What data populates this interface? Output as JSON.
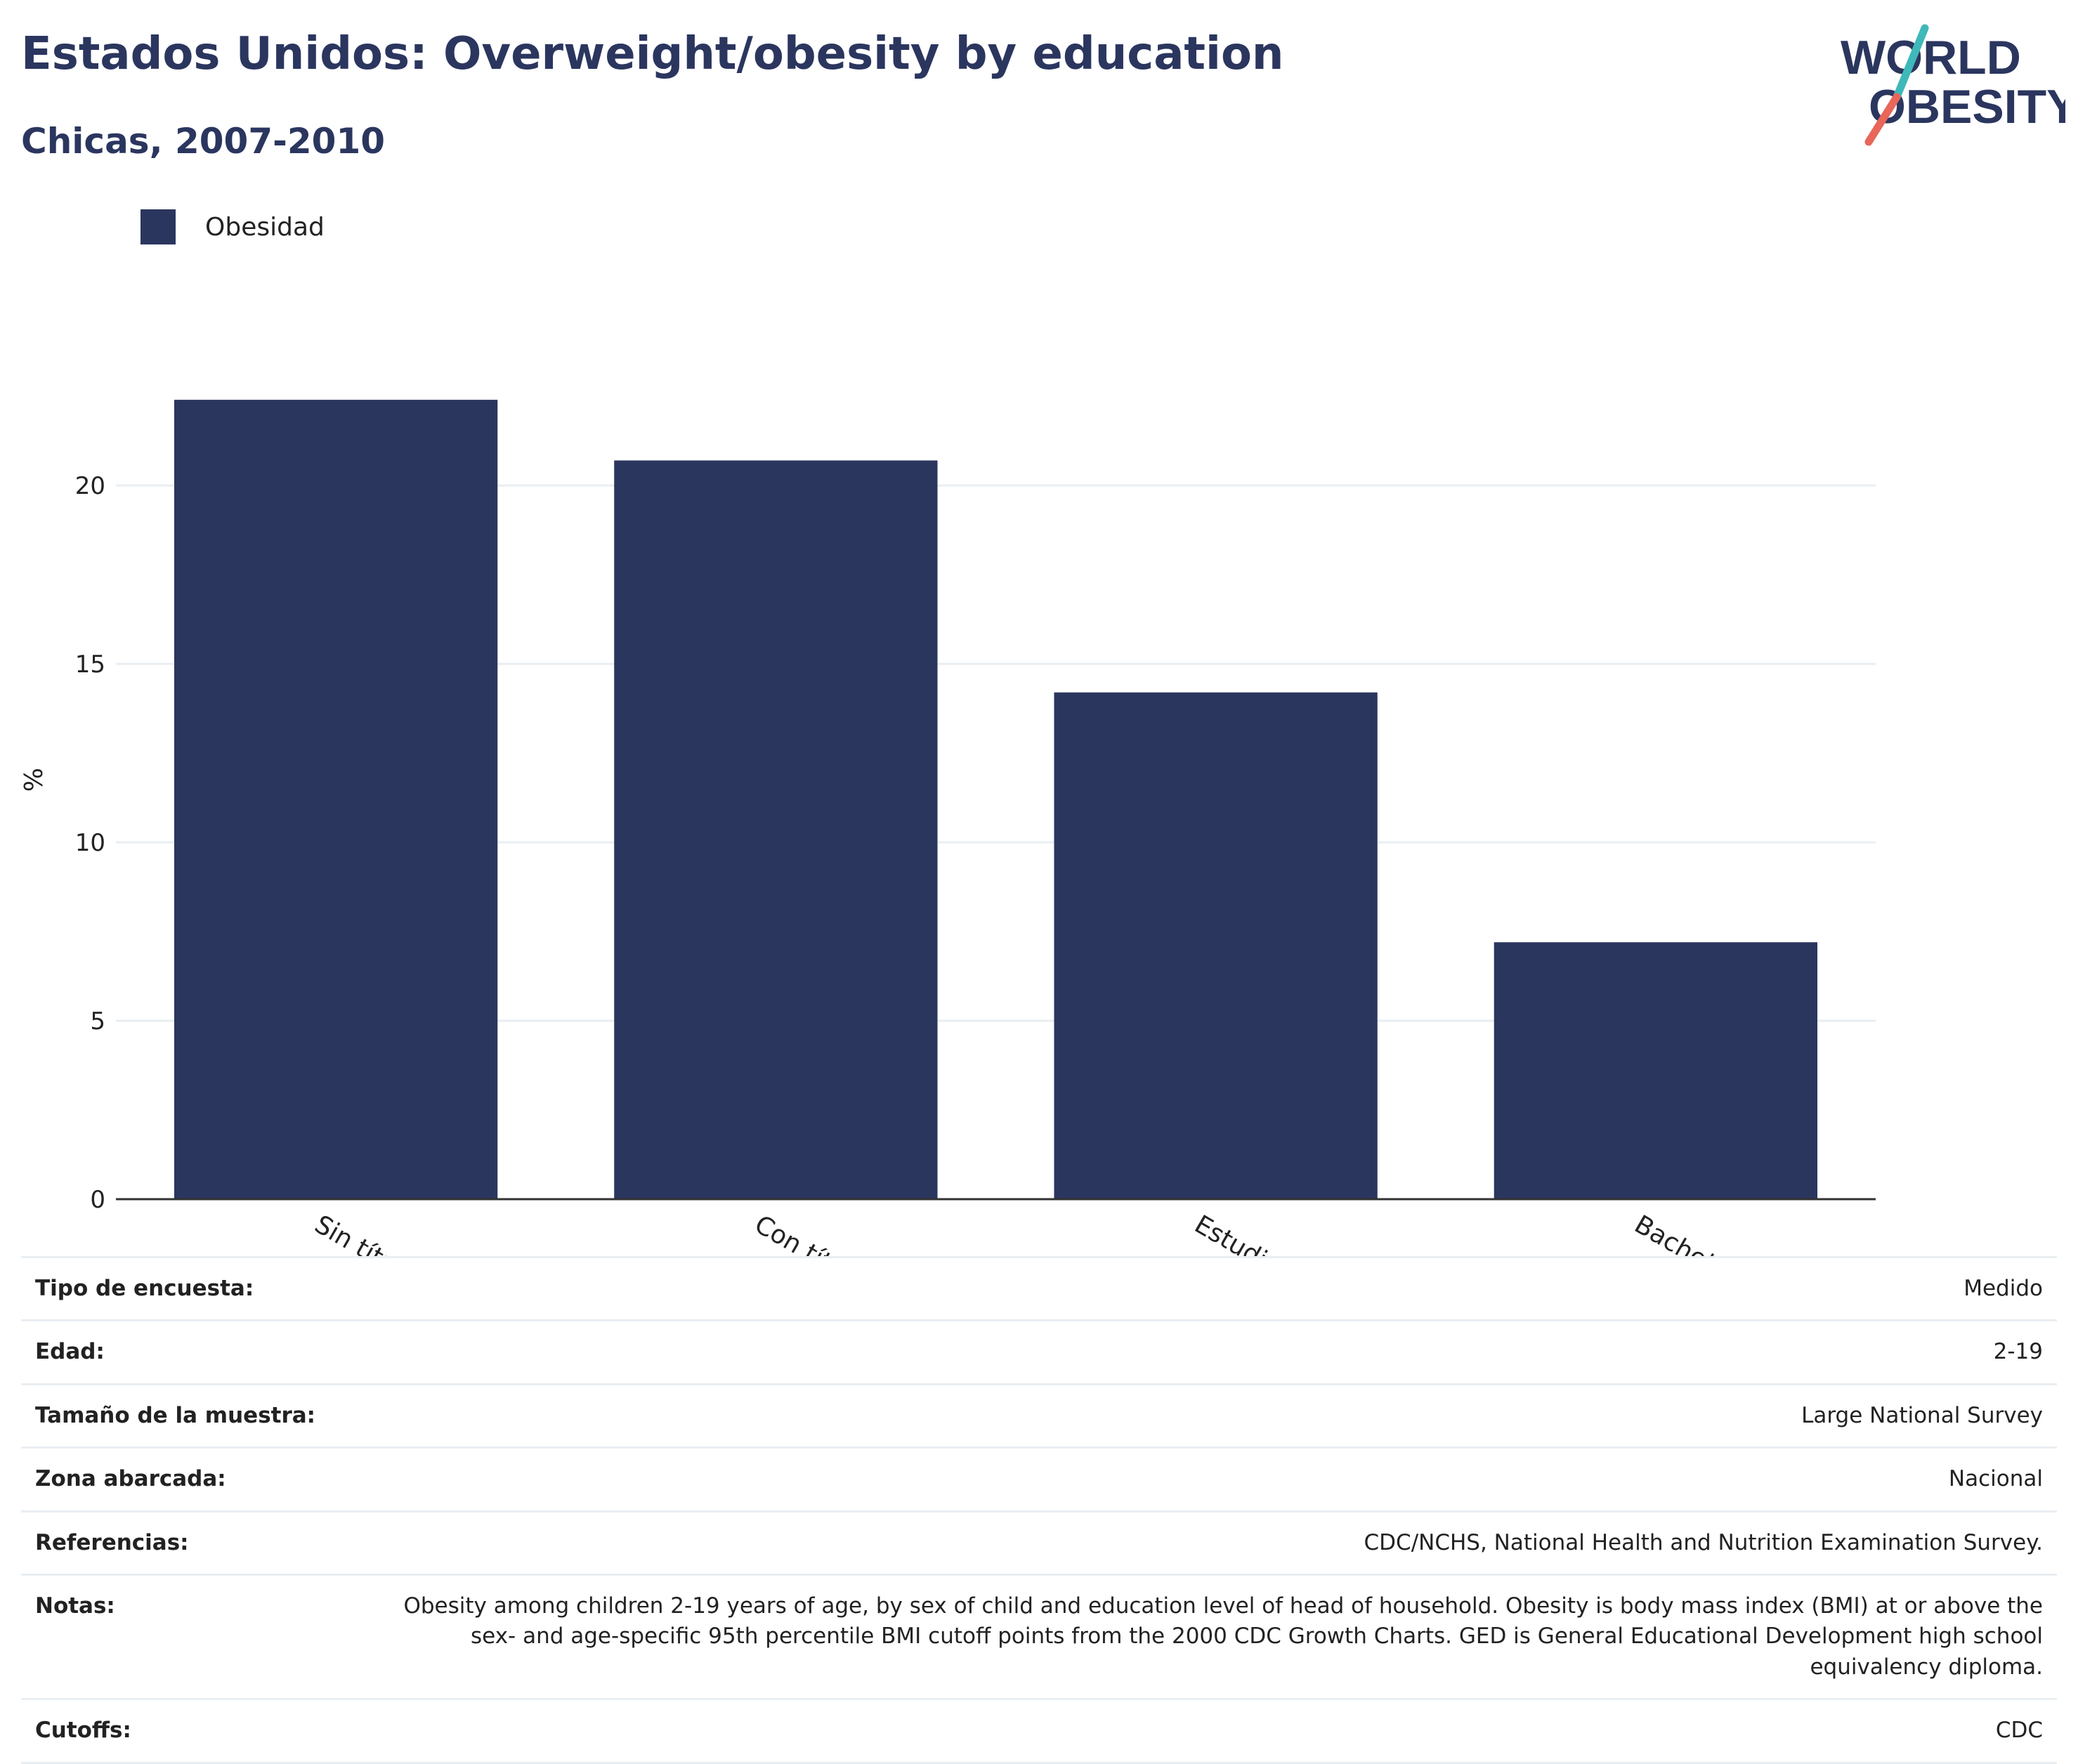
{
  "header": {
    "title": "Estados Unidos: Overweight/obesity by education",
    "subtitle": "Chicas, 2007-2010",
    "logo_line1": "WORLD",
    "logo_line2": "OBESITY"
  },
  "colors": {
    "bar": "#2b365f",
    "logo_text": "#2b365f",
    "logo_teal": "#3fb8b9",
    "logo_coral": "#e8665a",
    "grid": "#e9eef2",
    "axis": "#333333"
  },
  "chart_data": {
    "type": "bar",
    "categories": [
      "Sin título de secundaria",
      "Con título de bachillerato o con el Examen de Desarrollo Educativo General (GED en inglés)",
      "Estudios de grado parciales",
      "Bachelor’s degree or higher"
    ],
    "series": [
      {
        "name": "Obesidad",
        "values": [
          22.4,
          20.7,
          14.2,
          7.2
        ]
      }
    ],
    "ylabel": "%",
    "xlabel": "",
    "ylim": [
      0,
      25
    ],
    "yticks": [
      0,
      5,
      10,
      15,
      20
    ],
    "grid": true,
    "legend_position": "top-left"
  },
  "meta": [
    {
      "label": "Tipo de encuesta:",
      "value": "Medido"
    },
    {
      "label": "Edad:",
      "value": "2-19"
    },
    {
      "label": "Tamaño de la muestra:",
      "value": "Large National Survey"
    },
    {
      "label": "Zona abarcada:",
      "value": "Nacional"
    },
    {
      "label": "Referencias:",
      "value": "CDC/NCHS, National Health and Nutrition Examination Survey."
    },
    {
      "label": "Notas:",
      "value": "Obesity among children 2-19 years of age, by sex of child and education level of head of household. Obesity is body mass index (BMI) at or above the sex- and age-specific 95th percentile BMI cutoff points from the 2000 CDC Growth Charts. GED is General Educational Development high school equivalency diploma."
    },
    {
      "label": "Cutoffs:",
      "value": "CDC"
    }
  ]
}
